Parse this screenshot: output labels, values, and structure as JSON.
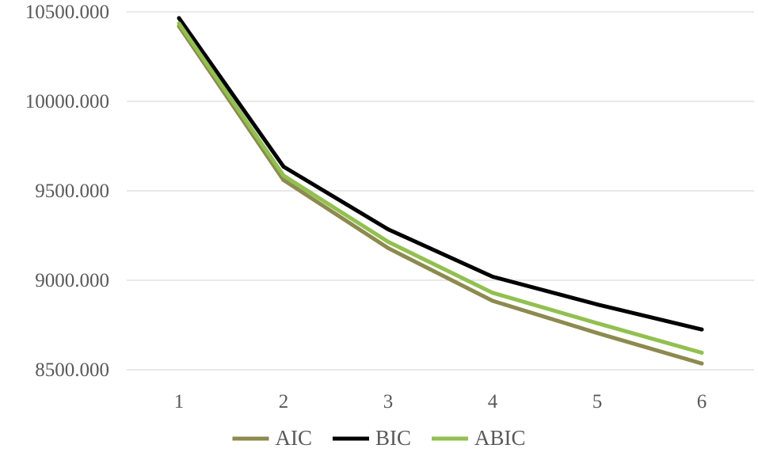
{
  "chart_data": {
    "type": "line",
    "categories": [
      "1",
      "2",
      "3",
      "4",
      "5",
      "6"
    ],
    "y_tick_labels": [
      "8500.000",
      "9000.000",
      "9500.000",
      "10000.000",
      "10500.000"
    ],
    "y_ticks": [
      8500,
      9000,
      9500,
      10000,
      10500
    ],
    "ylim": [
      8500,
      10500
    ],
    "grid": true,
    "legend_position": "bottom",
    "series": [
      {
        "name": "AIC",
        "color": "#8c8a4e",
        "values": [
          10420,
          9560,
          9180,
          8885,
          8705,
          8535
        ]
      },
      {
        "name": "BIC",
        "color": "#000000",
        "values": [
          10465,
          9635,
          9285,
          9020,
          8865,
          8725
        ]
      },
      {
        "name": "ABIC",
        "color": "#92c050",
        "values": [
          10435,
          9585,
          9215,
          8930,
          8760,
          8595
        ]
      }
    ]
  }
}
